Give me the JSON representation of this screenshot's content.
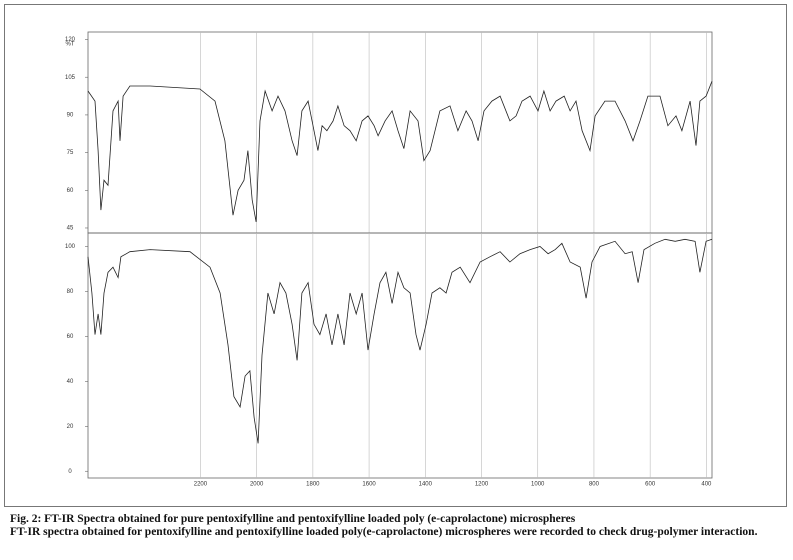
{
  "chart_data": [
    {
      "type": "line",
      "y_label": "%T",
      "xlim": [
        2600,
        380
      ],
      "xticks": [
        2200,
        2000,
        1800,
        1600,
        1400,
        1200,
        1000,
        800,
        600,
        400
      ],
      "ylim": [
        43,
        123
      ],
      "yticks": [
        45,
        60,
        75,
        90,
        105,
        120
      ],
      "grid": true,
      "series": [
        {
          "name": "pure pentoxifylline",
          "color": "#222222",
          "x": [
            2600,
            2575,
            2564,
            2554,
            2543,
            2529,
            2511,
            2493,
            2486,
            2475,
            2451,
            2379,
            2202,
            2148,
            2113,
            2084,
            2066,
            2045,
            2031,
            2016,
            2002,
            1988,
            1970,
            1945,
            1924,
            1899,
            1874,
            1856,
            1839,
            1817,
            1796,
            1782,
            1767,
            1750,
            1728,
            1711,
            1689,
            1668,
            1646,
            1625,
            1604,
            1582,
            1568,
            1543,
            1518,
            1497,
            1476,
            1454,
            1426,
            1405,
            1383,
            1348,
            1312,
            1284,
            1255,
            1234,
            1212,
            1191,
            1163,
            1134,
            1099,
            1077,
            1056,
            1027,
            999,
            978,
            956,
            935,
            906,
            885,
            864,
            842,
            814,
            796,
            761,
            725,
            689,
            661,
            636,
            608,
            565,
            537,
            508,
            487,
            458,
            437,
            423,
            401,
            380
          ],
          "values": [
            99.5,
            95.5,
            75.8,
            52.1,
            64,
            62,
            91.6,
            95.5,
            79.7,
            97.5,
            101.5,
            101.5,
            100.3,
            95.5,
            79.7,
            50.1,
            60,
            64,
            75.8,
            56.1,
            47.4,
            87.6,
            99.5,
            91.6,
            97.5,
            91.6,
            79.7,
            73.8,
            91.6,
            95.5,
            83.7,
            75.8,
            85.7,
            83.7,
            87.6,
            93.6,
            85.7,
            83.7,
            79.7,
            87.6,
            89.6,
            85.7,
            81.7,
            87.6,
            91.6,
            83.7,
            76.6,
            91.6,
            87.6,
            71.8,
            75.8,
            91.6,
            93.6,
            83.7,
            91.6,
            87.6,
            79.7,
            91.6,
            95.5,
            97.5,
            87.6,
            89.6,
            95.5,
            97.5,
            91.6,
            99.5,
            91.6,
            95.5,
            97.5,
            91.6,
            95.5,
            83.7,
            75.8,
            89.6,
            95.5,
            95.5,
            87.6,
            79.7,
            87.6,
            97.5,
            97.5,
            85.7,
            89.6,
            83.7,
            95.5,
            77.8,
            95.5,
            97.5,
            103.4
          ]
        }
      ]
    },
    {
      "type": "line",
      "xlim": [
        2600,
        380
      ],
      "xticks": [
        2200,
        2000,
        1800,
        1600,
        1400,
        1200,
        1000,
        800,
        600,
        400
      ],
      "ylim": [
        -3,
        106
      ],
      "yticks": [
        0,
        20,
        40,
        60,
        80,
        100
      ],
      "grid": true,
      "series": [
        {
          "name": "pentoxifylline loaded poly(e-caprolactone) microspheres",
          "color": "#222222",
          "x": [
            2600,
            2586,
            2575,
            2564,
            2554,
            2543,
            2529,
            2511,
            2493,
            2483,
            2451,
            2379,
            2237,
            2166,
            2130,
            2102,
            2081,
            2059,
            2041,
            2024,
            2009,
            1995,
            1981,
            1960,
            1938,
            1917,
            1896,
            1874,
            1856,
            1839,
            1817,
            1796,
            1775,
            1753,
            1732,
            1711,
            1689,
            1668,
            1646,
            1625,
            1604,
            1582,
            1561,
            1540,
            1518,
            1497,
            1476,
            1454,
            1433,
            1419,
            1397,
            1376,
            1348,
            1326,
            1305,
            1276,
            1241,
            1205,
            1170,
            1134,
            1099,
            1063,
            1027,
            992,
            963,
            938,
            914,
            885,
            849,
            828,
            807,
            778,
            725,
            689,
            664,
            643,
            622,
            583,
            547,
            511,
            476,
            440,
            423,
            401,
            380
          ],
          "values": [
            95.4,
            79.3,
            60.8,
            70,
            60.8,
            79.3,
            88.5,
            90.8,
            86.2,
            95.4,
            97.7,
            98.6,
            97.7,
            90.8,
            79.3,
            56.2,
            33.2,
            28.6,
            42.4,
            44.7,
            24,
            12.4,
            51.6,
            79.3,
            70,
            83.9,
            79.3,
            65.4,
            49.3,
            79.3,
            83.9,
            65.4,
            60.8,
            70,
            56.2,
            70,
            56.2,
            79.3,
            70,
            79.3,
            53.9,
            70,
            83.9,
            88.5,
            74.7,
            88.5,
            81.6,
            79.3,
            60.8,
            53.9,
            65.4,
            79.3,
            81.6,
            79.3,
            88.5,
            90.8,
            83.9,
            93.1,
            95.4,
            97.7,
            93.1,
            96.8,
            98.6,
            100,
            96.8,
            98.6,
            101.4,
            93.1,
            90.8,
            77,
            93.1,
            100,
            102.3,
            96.8,
            97.7,
            83.9,
            98.6,
            101.4,
            103.2,
            102.3,
            103.2,
            102.3,
            88.5,
            102.3,
            103.2
          ]
        }
      ]
    }
  ],
  "caption": {
    "title": "Fig. 2: FT-IR Spectra obtained for pure pentoxifylline and pentoxifylline loaded poly (e-caprolactone)  microspheres",
    "description": "FT-IR spectra obtained for pentoxifylline and pentoxifylline loaded poly(e-caprolactone) microspheres were recorded to check drug-polymer interaction."
  }
}
